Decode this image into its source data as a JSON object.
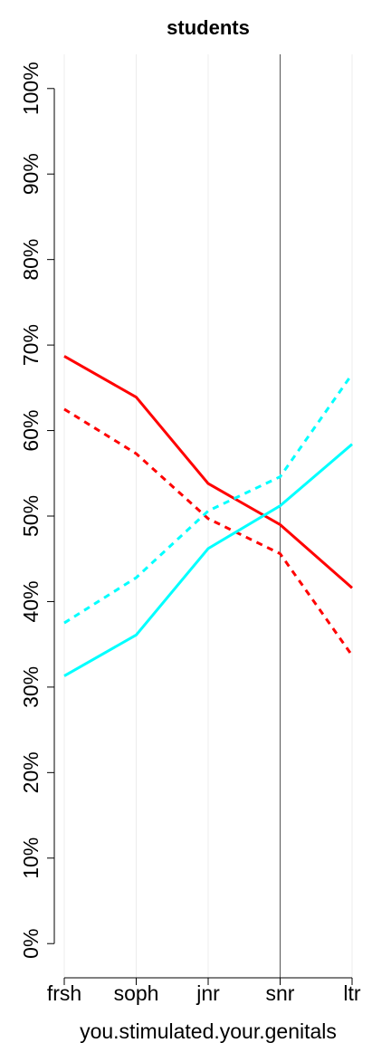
{
  "chart_data": {
    "type": "line",
    "title": "students",
    "x_label": "you.stimulated.your.genitals",
    "categories": [
      "frsh",
      "soph",
      "jnr",
      "snr",
      "ltr"
    ],
    "series": [
      {
        "color": "#ff0000",
        "dash": false,
        "values": [
          68.7,
          63.9,
          53.8,
          49.0,
          41.6
        ]
      },
      {
        "color": "#ff0000",
        "dash": true,
        "values": [
          62.5,
          57.3,
          49.7,
          45.6,
          33.7
        ]
      },
      {
        "color": "#00ffff",
        "dash": false,
        "values": [
          31.3,
          36.1,
          46.2,
          51.2,
          58.4
        ]
      },
      {
        "color": "#00ffff",
        "dash": true,
        "values": [
          37.5,
          42.8,
          50.6,
          54.6,
          66.6
        ]
      }
    ],
    "ylim": [
      -4,
      104
    ],
    "yticks": [
      {
        "value": 0,
        "label": "0%"
      },
      {
        "value": 10,
        "label": "10%"
      },
      {
        "value": 20,
        "label": "20%"
      },
      {
        "value": 30,
        "label": "30%"
      },
      {
        "value": 40,
        "label": "40%"
      },
      {
        "value": 50,
        "label": "50%"
      },
      {
        "value": 60,
        "label": "60%"
      },
      {
        "value": 70,
        "label": "70%"
      },
      {
        "value": 80,
        "label": "80%"
      },
      {
        "value": 90,
        "label": "90%"
      },
      {
        "value": 100,
        "label": "100%"
      }
    ],
    "grid": true,
    "vline": "snr"
  }
}
